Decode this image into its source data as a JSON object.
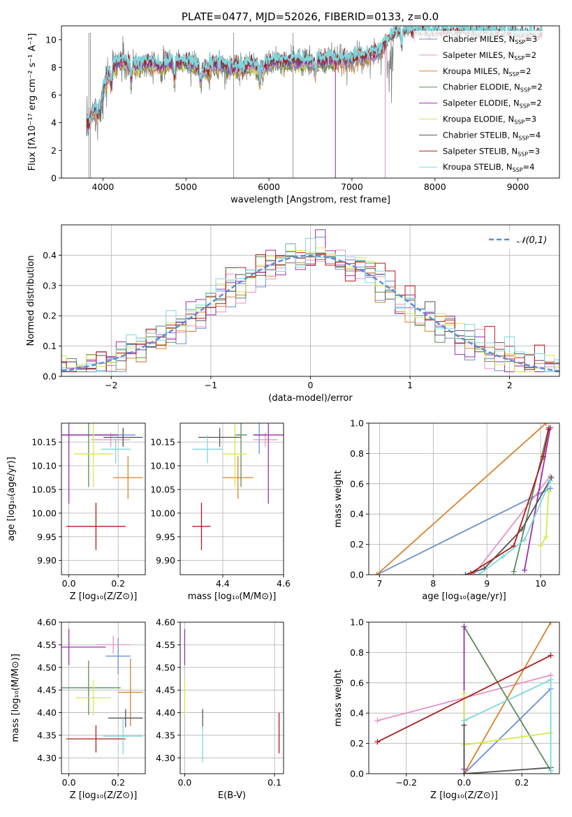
{
  "figure": {
    "title": "PLATE=0477, MJD=52026, FIBERID=0133, z=0.0"
  },
  "colors": {
    "chabrier_miles": "#6a8fd6",
    "salpeter_miles": "#e693c4",
    "kroupa_miles": "#d9822b",
    "chabrier_elodie": "#5a8a5c",
    "salpeter_elodie": "#9b2fae",
    "kroupa_elodie": "#d4e84e",
    "chabrier_stelib": "#555555",
    "salpeter_stelib": "#b31b1b",
    "kroupa_stelib": "#7dd8dd",
    "data_spectrum": "#808080",
    "normal_curve": "#5b8bd9",
    "grid": "#b0b0b0"
  },
  "chart_data": [
    {
      "id": "spectrum",
      "type": "line",
      "title": "PLATE=0477, MJD=52026, FIBERID=0133, z=0.0",
      "xlabel": "wavelength [Angstrom, rest frame]",
      "ylabel": "Flux [fλ10⁻¹⁷ erg cm⁻² s⁻¹ A⁻¹]",
      "xlim": [
        3500,
        9500
      ],
      "ylim": [
        0,
        11
      ],
      "xticks": [
        4000,
        5000,
        6000,
        7000,
        8000,
        9000
      ],
      "yticks": [
        0,
        2,
        4,
        6,
        8,
        10
      ],
      "grid": false,
      "legend_position": "right",
      "legend": [
        "Chabrier MILES, N_SSP=3",
        "Salpeter MILES, N_SSP=2",
        "Kroupa MILES, N_SSP=2",
        "Chabrier ELODIE, N_SSP=2",
        "Salpeter ELODIE, N_SSP=2",
        "Kroupa ELODIE, N_SSP=3",
        "Chabrier STELIB, N_SSP=4",
        "Salpeter STELIB, N_SSP=3",
        "Kroupa STELIB, N_SSP=4"
      ],
      "series_continuum": {
        "x": [
          3800,
          3850,
          3900,
          3950,
          4000,
          4050,
          4100,
          4200,
          4300,
          4400,
          4500,
          4600,
          4700,
          4800,
          4900,
          5000,
          5100,
          5200,
          5300,
          5400,
          5500,
          5600,
          5700,
          5800,
          5900,
          6000,
          6100,
          6200,
          6300,
          6400,
          6500,
          6600,
          6700,
          6800,
          6900,
          7000,
          7100,
          7200,
          7300,
          7400,
          7500,
          7600,
          7700,
          7800,
          7900,
          8000,
          8200,
          8400,
          8600,
          8800,
          9000,
          9200
        ],
        "y": [
          3.6,
          4.2,
          5.0,
          5.4,
          6.3,
          7.2,
          7.8,
          8.4,
          8.4,
          8.0,
          8.3,
          8.3,
          8.0,
          8.4,
          8.4,
          8.4,
          8.2,
          7.7,
          8.1,
          8.2,
          8.0,
          7.9,
          8.0,
          8.2,
          7.7,
          8.3,
          8.4,
          8.3,
          8.4,
          8.4,
          8.3,
          8.4,
          8.5,
          8.4,
          8.5,
          8.5,
          8.7,
          8.8,
          9.0,
          9.6,
          10.3,
          10.5,
          10.5,
          10.5,
          10.4,
          10.4,
          10.5,
          10.5,
          10.4,
          10.4,
          10.3,
          10.3
        ]
      }
    },
    {
      "id": "residuals",
      "type": "line",
      "xlabel": "(data-model)/error",
      "ylabel": "Normed distribution",
      "xlim": [
        -2.5,
        2.5
      ],
      "ylim": [
        0,
        0.5
      ],
      "xticks": [
        -2,
        -1,
        0,
        1,
        2
      ],
      "yticks": [
        0.0,
        0.1,
        0.2,
        0.3,
        0.4
      ],
      "grid": true,
      "legend_position": "top-right",
      "legend": [
        "𝒩(0,1)"
      ],
      "bin_width": 0.1,
      "hist_centers_from": -2.45
    },
    {
      "id": "age_vs_Z",
      "type": "scatter",
      "xlabel": "Z [log₁₀(Z/Z⊙)]",
      "ylabel": "age  [log₁₀(age/yr)]",
      "xlim": [
        -0.03,
        0.31
      ],
      "ylim": [
        9.87,
        10.19
      ],
      "xticks": [
        0.0,
        0.2
      ],
      "yticks": [
        9.9,
        9.95,
        10.0,
        10.05,
        10.1,
        10.15
      ],
      "grid": true,
      "points": [
        {
          "x": 0.22,
          "y": 10.165,
          "xerr": 0.05,
          "yerr": 0.012,
          "c": "chabrier_miles"
        },
        {
          "x": 0.17,
          "y": 10.155,
          "xerr": 0.08,
          "yerr": 0.015,
          "c": "salpeter_miles"
        },
        {
          "x": 0.24,
          "y": 10.075,
          "xerr": 0.06,
          "yerr": 0.045,
          "c": "kroupa_miles"
        },
        {
          "x": 0.08,
          "y": 10.165,
          "xerr": 0.12,
          "yerr": 0.11,
          "c": "chabrier_elodie"
        },
        {
          "x": 0.0,
          "y": 10.165,
          "xerr": 0.2,
          "yerr": 0.145,
          "c": "salpeter_elodie"
        },
        {
          "x": 0.1,
          "y": 10.125,
          "xerr": 0.08,
          "yerr": 0.07,
          "c": "kroupa_elodie"
        },
        {
          "x": 0.22,
          "y": 10.16,
          "xerr": 0.08,
          "yerr": 0.02,
          "c": "chabrier_stelib"
        },
        {
          "x": 0.11,
          "y": 9.972,
          "xerr": 0.12,
          "yerr": 0.05,
          "c": "salpeter_stelib"
        },
        {
          "x": 0.19,
          "y": 10.135,
          "xerr": 0.06,
          "yerr": 0.03,
          "c": "kroupa_stelib"
        }
      ]
    },
    {
      "id": "age_vs_mass",
      "type": "scatter",
      "xlabel": "mass [log₁₀(M/M⊙)]",
      "ylabel": "",
      "xlim": [
        4.26,
        4.6
      ],
      "ylim": [
        9.87,
        10.19
      ],
      "xticks": [
        4.4,
        4.6
      ],
      "yticks": [
        9.9,
        9.95,
        10.0,
        10.05,
        10.1,
        10.15
      ],
      "grid": true,
      "points": [
        {
          "x": 4.52,
          "y": 10.165,
          "xerr": 0.02,
          "yerr": 0.04,
          "c": "chabrier_miles"
        },
        {
          "x": 4.54,
          "y": 10.155,
          "xerr": 0.04,
          "yerr": 0.015,
          "c": "salpeter_miles"
        },
        {
          "x": 4.45,
          "y": 10.075,
          "xerr": 0.05,
          "yerr": 0.045,
          "c": "kroupa_miles"
        },
        {
          "x": 4.46,
          "y": 10.165,
          "xerr": 0.02,
          "yerr": 0.11,
          "c": "chabrier_elodie"
        },
        {
          "x": 4.55,
          "y": 10.165,
          "xerr": 0.05,
          "yerr": 0.145,
          "c": "salpeter_elodie"
        },
        {
          "x": 4.44,
          "y": 10.125,
          "xerr": 0.04,
          "yerr": 0.07,
          "c": "kroupa_elodie"
        },
        {
          "x": 4.39,
          "y": 10.16,
          "xerr": 0.07,
          "yerr": 0.02,
          "c": "chabrier_stelib"
        },
        {
          "x": 4.33,
          "y": 9.972,
          "xerr": 0.03,
          "yerr": 0.05,
          "c": "salpeter_stelib"
        },
        {
          "x": 4.35,
          "y": 10.135,
          "xerr": 0.05,
          "yerr": 0.03,
          "c": "kroupa_stelib"
        }
      ]
    },
    {
      "id": "mass_weight_vs_age",
      "type": "line",
      "xlabel": "age  [log₁₀(age/yr)]",
      "ylabel": "mass weight",
      "xlim": [
        6.8,
        10.35
      ],
      "ylim": [
        0,
        1
      ],
      "xticks": [
        7,
        8,
        9,
        10
      ],
      "yticks": [
        0.0,
        0.2,
        0.4,
        0.6,
        0.8,
        1.0
      ],
      "grid": true,
      "series": [
        {
          "x": [
            6.95,
            10.18
          ],
          "y": [
            0.0,
            0.57
          ],
          "c": "chabrier_miles"
        },
        {
          "x": [
            8.75,
            10.18
          ],
          "y": [
            0.0,
            0.65
          ],
          "c": "salpeter_miles"
        },
        {
          "x": [
            6.95,
            10.1
          ],
          "y": [
            0.0,
            1.0
          ],
          "c": "kroupa_miles"
        },
        {
          "x": [
            9.5,
            10.15
          ],
          "y": [
            0.02,
            0.97
          ],
          "c": "chabrier_elodie"
        },
        {
          "x": [
            9.7,
            10.18
          ],
          "y": [
            0.03,
            0.97
          ],
          "c": "salpeter_elodie"
        },
        {
          "x": [
            10.0,
            10.1,
            10.15
          ],
          "y": [
            0.19,
            0.25,
            0.55
          ],
          "c": "kroupa_elodie"
        },
        {
          "x": [
            8.6,
            8.95,
            9.65,
            10.2
          ],
          "y": [
            0.0,
            0.04,
            0.3,
            0.64
          ],
          "c": "chabrier_stelib"
        },
        {
          "x": [
            8.7,
            9.5,
            10.05,
            10.15
          ],
          "y": [
            0.01,
            0.19,
            0.78,
            0.96
          ],
          "c": "salpeter_stelib"
        },
        {
          "x": [
            8.85,
            9.3,
            9.7,
            10.18
          ],
          "y": [
            0.0,
            0.12,
            0.23,
            0.62
          ],
          "c": "kroupa_stelib"
        }
      ]
    },
    {
      "id": "mass_vs_Z",
      "type": "scatter",
      "xlabel": "Z [log₁₀(Z/Z⊙)]",
      "ylabel": "mass [log₁₀(M/M⊙)]",
      "xlim": [
        -0.03,
        0.31
      ],
      "ylim": [
        4.265,
        4.6
      ],
      "xticks": [
        0.0,
        0.2
      ],
      "yticks": [
        4.3,
        4.35,
        4.4,
        4.45,
        4.5,
        4.55,
        4.6
      ],
      "grid": true,
      "points": [
        {
          "x": 0.2,
          "y": 4.525,
          "xerr": 0.05,
          "yerr": 0.04,
          "c": "chabrier_miles"
        },
        {
          "x": 0.18,
          "y": 4.55,
          "xerr": 0.07,
          "yerr": 0.02,
          "c": "salpeter_miles"
        },
        {
          "x": 0.25,
          "y": 4.445,
          "xerr": 0.05,
          "yerr": 0.075,
          "c": "kroupa_miles"
        },
        {
          "x": 0.08,
          "y": 4.455,
          "xerr": 0.13,
          "yerr": 0.06,
          "c": "chabrier_elodie"
        },
        {
          "x": 0.0,
          "y": 4.545,
          "xerr": 0.15,
          "yerr": 0.04,
          "c": "salpeter_elodie"
        },
        {
          "x": 0.1,
          "y": 4.433,
          "xerr": 0.07,
          "yerr": 0.04,
          "c": "kroupa_elodie"
        },
        {
          "x": 0.23,
          "y": 4.388,
          "xerr": 0.07,
          "yerr": 0.02,
          "c": "chabrier_stelib"
        },
        {
          "x": 0.11,
          "y": 4.342,
          "xerr": 0.12,
          "yerr": 0.03,
          "c": "salpeter_stelib"
        },
        {
          "x": 0.22,
          "y": 4.348,
          "xerr": 0.08,
          "yerr": 0.04,
          "c": "kroupa_stelib"
        }
      ]
    },
    {
      "id": "mass_vs_ebv",
      "type": "scatter",
      "xlabel": "E(B-V)",
      "ylabel": "",
      "xlim": [
        -0.005,
        0.11
      ],
      "ylim": [
        4.265,
        4.6
      ],
      "xticks": [
        0.0,
        0.1
      ],
      "yticks": [
        4.3,
        4.35,
        4.4,
        4.45,
        4.5,
        4.55,
        4.6
      ],
      "grid": true,
      "points": [
        {
          "x": 0.0,
          "y": 4.545,
          "xerr": 0.0,
          "yerr": 0.04,
          "c": "salpeter_elodie"
        },
        {
          "x": 0.0,
          "y": 4.433,
          "xerr": 0.0,
          "yerr": 0.04,
          "c": "kroupa_elodie"
        },
        {
          "x": 0.02,
          "y": 4.388,
          "xerr": 0.0,
          "yerr": 0.02,
          "c": "chabrier_stelib"
        },
        {
          "x": 0.02,
          "y": 4.33,
          "xerr": 0.0,
          "yerr": 0.04,
          "c": "kroupa_stelib"
        },
        {
          "x": 0.105,
          "y": 4.355,
          "xerr": 0.0,
          "yerr": 0.045,
          "c": "salpeter_stelib"
        }
      ]
    },
    {
      "id": "mass_weight_vs_Z",
      "type": "line",
      "xlabel": "Z [log₁₀(Z/Z⊙)]",
      "ylabel": "mass weight",
      "xlim": [
        -0.33,
        0.33
      ],
      "ylim": [
        0,
        1
      ],
      "xticks": [
        -0.2,
        0.0,
        0.2
      ],
      "yticks": [
        0.0,
        0.2,
        0.4,
        0.6,
        0.8,
        1.0
      ],
      "grid": true,
      "series": [
        {
          "x": [
            0.0,
            0.3
          ],
          "y": [
            0.0,
            0.56
          ],
          "c": "chabrier_miles"
        },
        {
          "x": [
            -0.3,
            0.3
          ],
          "y": [
            0.35,
            0.65
          ],
          "c": "salpeter_miles"
        },
        {
          "x": [
            0.0,
            0.3
          ],
          "y": [
            0.0,
            1.0
          ],
          "c": "kroupa_miles"
        },
        {
          "x": [
            0.0,
            0.3
          ],
          "y": [
            0.97,
            0.02
          ],
          "c": "chabrier_elodie"
        },
        {
          "x": [
            0.0,
            0.0
          ],
          "y": [
            0.97,
            0.03
          ],
          "c": "salpeter_elodie"
        },
        {
          "x": [
            0.0,
            0.0,
            0.3
          ],
          "y": [
            0.53,
            0.19,
            0.27
          ],
          "c": "kroupa_elodie"
        },
        {
          "x": [
            0.0,
            0.0,
            0.3
          ],
          "y": [
            0.32,
            0.0,
            0.04
          ],
          "c": "chabrier_stelib"
        },
        {
          "x": [
            -0.3,
            0.3
          ],
          "y": [
            0.21,
            0.78
          ],
          "c": "salpeter_stelib"
        },
        {
          "x": [
            0.0,
            0.3,
            0.3
          ],
          "y": [
            0.35,
            0.62,
            0.02
          ],
          "c": "kroupa_stelib"
        }
      ]
    }
  ]
}
